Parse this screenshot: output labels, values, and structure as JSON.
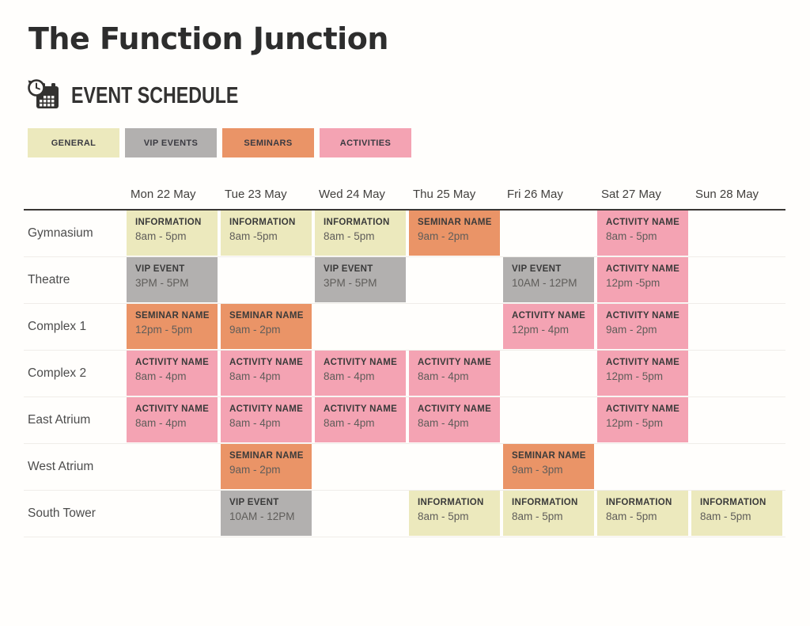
{
  "page": {
    "title": "The Function Junction"
  },
  "schedule": {
    "heading": "EVENT SCHEDULE",
    "colors": {
      "general": "#ECE9BD",
      "vip": "#B2B0AF",
      "seminar": "#EA9467",
      "activity": "#F4A3B3"
    },
    "legend": [
      {
        "label": "GENERAL",
        "type": "general"
      },
      {
        "label": "VIP EVENTS",
        "type": "vip"
      },
      {
        "label": "SEMINARS",
        "type": "seminar"
      },
      {
        "label": "ACTIVITIES",
        "type": "activity"
      }
    ],
    "days": [
      "Mon 22 May",
      "Tue 23 May",
      "Wed 24 May",
      "Thu 25 May",
      "Fri 26 May",
      "Sat 27 May",
      "Sun 28 May"
    ],
    "rows": [
      {
        "venue": "Gymnasium",
        "cells": [
          {
            "type": "general",
            "name": "INFORMATION",
            "time": "8am - 5pm"
          },
          {
            "type": "general",
            "name": "INFORMATION",
            "time": "8am -5pm"
          },
          {
            "type": "general",
            "name": "INFORMATION",
            "time": "8am - 5pm"
          },
          {
            "type": "seminar",
            "name": "SEMINAR NAME",
            "time": "9am - 2pm"
          },
          null,
          {
            "type": "activity",
            "name": "ACTIVITY NAME",
            "time": "8am - 5pm"
          },
          null
        ]
      },
      {
        "venue": "Theatre",
        "cells": [
          {
            "type": "vip",
            "name": "VIP EVENT",
            "time": "3PM - 5PM"
          },
          null,
          {
            "type": "vip",
            "name": "VIP EVENT",
            "time": "3PM - 5PM"
          },
          null,
          {
            "type": "vip",
            "name": "VIP EVENT",
            "time": "10AM - 12PM"
          },
          {
            "type": "activity",
            "name": "ACTIVITY NAME",
            "time": "12pm -5pm"
          },
          null
        ]
      },
      {
        "venue": "Complex 1",
        "cells": [
          {
            "type": "seminar",
            "name": "SEMINAR NAME",
            "time": "12pm - 5pm"
          },
          {
            "type": "seminar",
            "name": "SEMINAR NAME",
            "time": "9am - 2pm"
          },
          null,
          null,
          {
            "type": "activity",
            "name": "ACTIVITY NAME",
            "time": "12pm - 4pm"
          },
          {
            "type": "activity",
            "name": "ACTIVITY NAME",
            "time": "9am - 2pm"
          },
          null
        ]
      },
      {
        "venue": "Complex 2",
        "cells": [
          {
            "type": "activity",
            "name": "ACTIVITY NAME",
            "time": "8am - 4pm"
          },
          {
            "type": "activity",
            "name": "ACTIVITY NAME",
            "time": "8am - 4pm"
          },
          {
            "type": "activity",
            "name": "ACTIVITY NAME",
            "time": "8am - 4pm"
          },
          {
            "type": "activity",
            "name": "ACTIVITY NAME",
            "time": "8am - 4pm"
          },
          null,
          {
            "type": "activity",
            "name": "ACTIVITY NAME",
            "time": "12pm - 5pm"
          },
          null
        ]
      },
      {
        "venue": "East Atrium",
        "cells": [
          {
            "type": "activity",
            "name": "ACTIVITY NAME",
            "time": "8am - 4pm"
          },
          {
            "type": "activity",
            "name": "ACTIVITY NAME",
            "time": "8am - 4pm"
          },
          {
            "type": "activity",
            "name": "ACTIVITY NAME",
            "time": "8am - 4pm"
          },
          {
            "type": "activity",
            "name": "ACTIVITY NAME",
            "time": "8am - 4pm"
          },
          null,
          {
            "type": "activity",
            "name": "ACTIVITY NAME",
            "time": "12pm - 5pm"
          },
          null
        ]
      },
      {
        "venue": "West Atrium",
        "cells": [
          null,
          {
            "type": "seminar",
            "name": "SEMINAR NAME",
            "time": "9am - 2pm"
          },
          null,
          null,
          {
            "type": "seminar",
            "name": "SEMINAR NAME",
            "time": "9am - 3pm"
          },
          null,
          null
        ]
      },
      {
        "venue": "South Tower",
        "cells": [
          null,
          {
            "type": "vip",
            "name": "VIP EVENT",
            "time": "10AM - 12PM"
          },
          null,
          {
            "type": "general",
            "name": "INFORMATION",
            "time": "8am - 5pm"
          },
          {
            "type": "general",
            "name": "INFORMATION",
            "time": "8am - 5pm"
          },
          {
            "type": "general",
            "name": "INFORMATION",
            "time": "8am - 5pm"
          },
          {
            "type": "general",
            "name": "INFORMATION",
            "time": "8am - 5pm"
          }
        ]
      }
    ]
  }
}
